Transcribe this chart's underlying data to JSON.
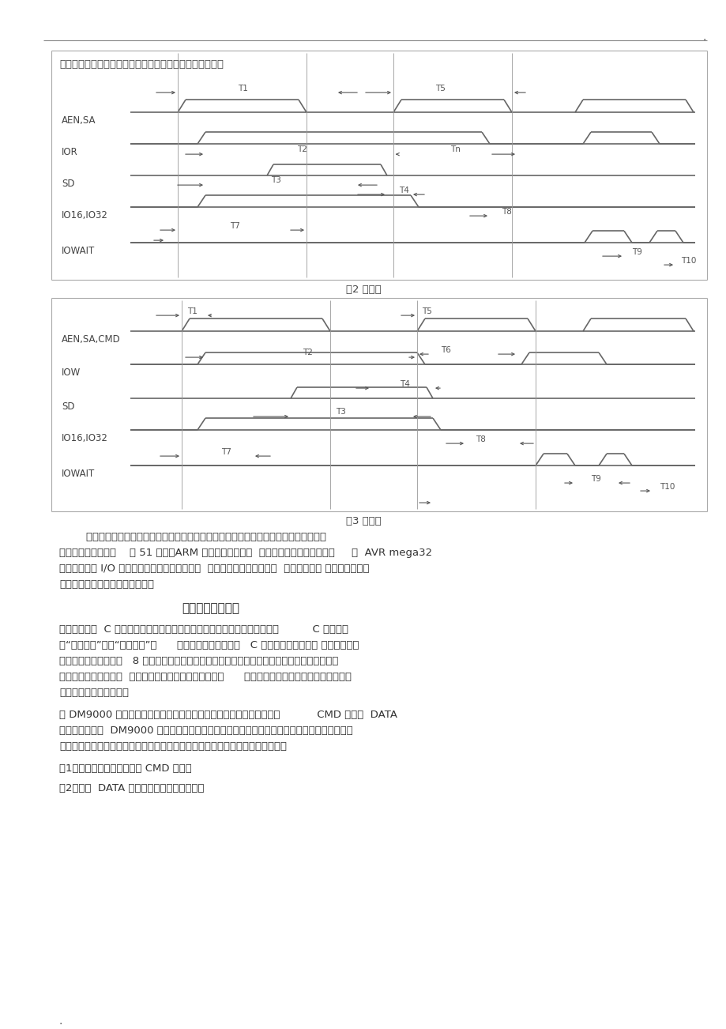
{
  "bg_color": "#ffffff",
  "border_color": "#cccccc",
  "line_color": "#555555",
  "text_color": "#333333",
  "intro_text": "换引脚，低电平时读写命令操作，高电平时读写数据操作。",
  "fig2_caption": "图2 读时序",
  "fig3_caption": "图3 写时序",
  "section2_title": "二、编写驱动程序",
  "para1_lines": [
    "在这，我使用  C 语言编写驱动程序，这需要非常注意一点，即处理器所用的          C 编译器使",
    "用“大端格式”还是“小端格式”，      这可以在相应处理器的   C 编译器说明上找到。 一般比较常见",
    "的是小端格式。而对于   8 位处理器来说，在编写驱动程序时，可以不考虑，但是在编写网络协议",
    "的时候，一定好考虑，  因为网络协议的格式是大端格式，      而大部分编译器或者我们习惯的是小端",
    "格式，这一点需要注意。"
  ],
  "para2_lines": [
    "在 DM9000 中，只有两个可以直接被处理器访问的寄存器，这里命名为           CMD 端口和  DATA",
    "端口。事实上，  DM9000 中有许多控制和状态寄存器（这些寄存器在上一篇文章中有详细的使用",
    "说明），但它们都不能直接被处理器访问，访问这些控制、状态寄存器的方法是："
  ],
  "item1": "（1）、将寄存器的地址写到 CMD 端口；",
  "item2": "（2）、从  DATA 端口读写寄存器中的数据；",
  "dot_text": ".",
  "para_intro_lines": [
    "        这些引脚接口和其它单片机外围器件的引脚接口基本相同，其使用也一样。对于有总线",
    "接口的单片机来说，    如 51 系列，ARM 等直接连接即可。  对于没有总线接口的来说，     如  AVR mega32",
    "等可以直接用 I/O 引脚模拟总线时序进行连接。  连接时要参考读写时序，  如上图所示。 具体连接电路，",
    "有时间我再画出来，暂时先略了。"
  ]
}
